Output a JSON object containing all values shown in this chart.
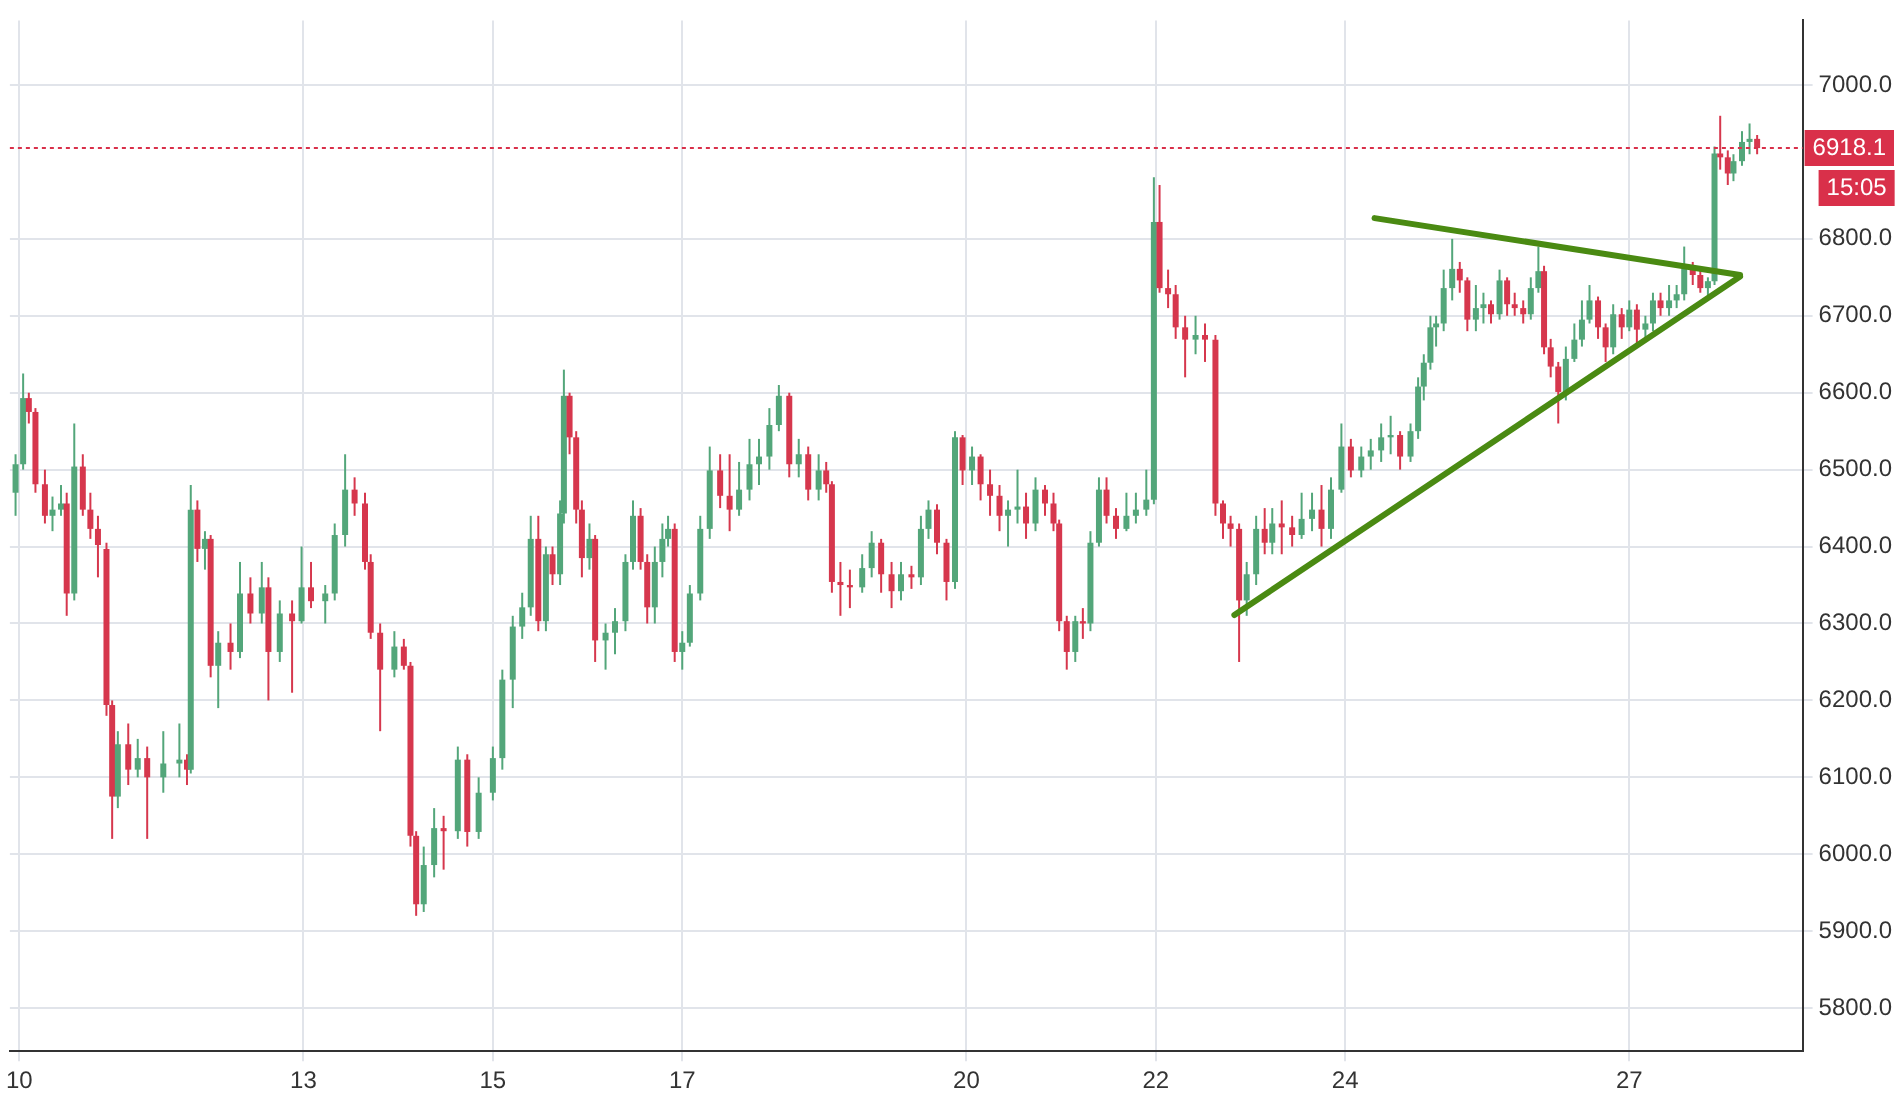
{
  "chart_data": {
    "type": "candlestick",
    "xlim": [
      9.9,
      28.83
    ],
    "xticks": [
      10,
      13,
      15,
      17,
      20,
      22,
      24,
      27
    ],
    "ylim": [
      5744,
      7084
    ],
    "yticks": [
      {
        "value": 5800,
        "label": "5800.0"
      },
      {
        "value": 5900,
        "label": "5900.0"
      },
      {
        "value": 6000,
        "label": "6000.0"
      },
      {
        "value": 6100,
        "label": "6100.0"
      },
      {
        "value": 6200,
        "label": "6200.0"
      },
      {
        "value": 6300,
        "label": "6300.0"
      },
      {
        "value": 6400,
        "label": "6400.0"
      },
      {
        "value": 6500,
        "label": "6500.0"
      },
      {
        "value": 6600,
        "label": "6600.0"
      },
      {
        "value": 6700,
        "label": "6700.0"
      },
      {
        "value": 6800,
        "label": "6800.0"
      },
      {
        "value": 7000,
        "label": "7000.0"
      }
    ],
    "grid": true,
    "ref_lines": [
      {
        "axis": "y",
        "value": 6918.1,
        "label": "6918.1",
        "color": "#d9304a",
        "line_style": "dotted"
      }
    ],
    "annotations": [
      "15:05"
    ],
    "series": [
      {
        "x": [
          9.96,
          10.04,
          10.1,
          10.17,
          10.27,
          10.35,
          10.44,
          10.5,
          10.58,
          10.67,
          10.75,
          10.83,
          10.92,
          10.98,
          11.04,
          11.15,
          11.25,
          11.35,
          11.52,
          11.69,
          11.77,
          11.81,
          11.88,
          11.96,
          12.02,
          12.1,
          12.23,
          12.33,
          12.44,
          12.56,
          12.63,
          12.75,
          12.88,
          12.98,
          13.08,
          13.23,
          13.33,
          13.44,
          13.54,
          13.65,
          13.71,
          13.81,
          13.96,
          14.06,
          14.13,
          14.19,
          14.27,
          14.38,
          14.48,
          14.63,
          14.73,
          14.85,
          15.0,
          15.1,
          15.21,
          15.31,
          15.4,
          15.48,
          15.56,
          15.63,
          15.71,
          15.75,
          15.81,
          15.88,
          15.94,
          16.02,
          16.08,
          16.19,
          16.29,
          16.4,
          16.48,
          16.56,
          16.63,
          16.71,
          16.79,
          16.85,
          16.92,
          17.0,
          17.08,
          17.19,
          17.29,
          17.4,
          17.5,
          17.6,
          17.71,
          17.81,
          17.92,
          18.02,
          18.13,
          18.23,
          18.33,
          18.44,
          18.52,
          18.58,
          18.67,
          18.77,
          18.9,
          19.0,
          19.1,
          19.21,
          19.31,
          19.42,
          19.52,
          19.6,
          19.69,
          19.79,
          19.88,
          19.96,
          20.06,
          20.15,
          20.25,
          20.35,
          20.44,
          20.54,
          20.63,
          20.73,
          20.83,
          20.92,
          20.98,
          21.06,
          21.15,
          21.23,
          21.31,
          21.4,
          21.48,
          21.58,
          21.69,
          21.79,
          21.9,
          21.98,
          22.04,
          22.13,
          22.21,
          22.31,
          22.42,
          22.52,
          22.63,
          22.71,
          22.79,
          22.88,
          22.96,
          23.06,
          23.15,
          23.23,
          23.33,
          23.44,
          23.54,
          23.65,
          23.75,
          23.85,
          23.96,
          24.06,
          24.17,
          24.27,
          24.38,
          24.48,
          24.58,
          24.69,
          24.77,
          24.83,
          24.9,
          24.96,
          25.04,
          25.13,
          25.21,
          25.29,
          25.38,
          25.46,
          25.54,
          25.63,
          25.71,
          25.79,
          25.88,
          25.96,
          26.04,
          26.1,
          26.17,
          26.25,
          26.33,
          26.42,
          26.5,
          26.58,
          26.67,
          26.75,
          26.83,
          26.92,
          27.0,
          27.08,
          27.17,
          27.25,
          27.33,
          27.42,
          27.5,
          27.58,
          27.67,
          27.75,
          27.83,
          27.9,
          27.96,
          28.04,
          28.1,
          28.19,
          28.27,
          28.35
        ],
        "ohlc": [
          [
            6470,
            6520,
            6440,
            6507
          ],
          [
            6507,
            6625,
            6500,
            6593
          ],
          [
            6593,
            6600,
            6560,
            6575
          ],
          [
            6575,
            6580,
            6470,
            6481
          ],
          [
            6481,
            6500,
            6430,
            6440
          ],
          [
            6440,
            6465,
            6420,
            6448
          ],
          [
            6448,
            6480,
            6440,
            6456
          ],
          [
            6456,
            6470,
            6310,
            6339
          ],
          [
            6339,
            6560,
            6330,
            6504
          ],
          [
            6504,
            6520,
            6440,
            6448
          ],
          [
            6448,
            6470,
            6410,
            6423
          ],
          [
            6423,
            6440,
            6360,
            6402
          ],
          [
            6397,
            6405,
            6180,
            6194
          ],
          [
            6194,
            6200,
            6020,
            6075
          ],
          [
            6075,
            6160,
            6060,
            6143
          ],
          [
            6143,
            6170,
            6090,
            6110
          ],
          [
            6110,
            6150,
            6100,
            6125
          ],
          [
            6125,
            6140,
            6020,
            6100
          ],
          [
            6100,
            6160,
            6080,
            6118
          ],
          [
            6118,
            6170,
            6100,
            6123
          ],
          [
            6123,
            6130,
            6090,
            6110
          ],
          [
            6110,
            6480,
            6105,
            6448
          ],
          [
            6448,
            6460,
            6380,
            6397
          ],
          [
            6397,
            6420,
            6370,
            6410
          ],
          [
            6410,
            6415,
            6230,
            6245
          ],
          [
            6245,
            6290,
            6190,
            6275
          ],
          [
            6275,
            6300,
            6240,
            6263
          ],
          [
            6263,
            6380,
            6255,
            6339
          ],
          [
            6339,
            6360,
            6300,
            6313
          ],
          [
            6313,
            6380,
            6300,
            6347
          ],
          [
            6347,
            6360,
            6200,
            6263
          ],
          [
            6263,
            6330,
            6250,
            6313
          ],
          [
            6313,
            6330,
            6210,
            6303
          ],
          [
            6303,
            6400,
            6300,
            6347
          ],
          [
            6347,
            6380,
            6320,
            6329
          ],
          [
            6329,
            6350,
            6300,
            6339
          ],
          [
            6339,
            6430,
            6330,
            6415
          ],
          [
            6415,
            6520,
            6400,
            6474
          ],
          [
            6474,
            6490,
            6440,
            6456
          ],
          [
            6456,
            6470,
            6370,
            6380
          ],
          [
            6380,
            6390,
            6280,
            6288
          ],
          [
            6288,
            6300,
            6160,
            6240
          ],
          [
            6240,
            6290,
            6230,
            6270
          ],
          [
            6270,
            6280,
            6240,
            6245
          ],
          [
            6245,
            6250,
            6010,
            6024
          ],
          [
            6024,
            6030,
            5920,
            5935
          ],
          [
            5935,
            6010,
            5925,
            5986
          ],
          [
            5986,
            6060,
            5970,
            6034
          ],
          [
            6034,
            6050,
            5980,
            6030
          ],
          [
            6030,
            6140,
            6020,
            6123
          ],
          [
            6123,
            6130,
            6010,
            6029
          ],
          [
            6029,
            6100,
            6020,
            6080
          ],
          [
            6080,
            6140,
            6070,
            6125
          ],
          [
            6125,
            6240,
            6110,
            6227
          ],
          [
            6227,
            6310,
            6190,
            6296
          ],
          [
            6296,
            6340,
            6280,
            6321
          ],
          [
            6321,
            6440,
            6310,
            6410
          ],
          [
            6410,
            6440,
            6290,
            6303
          ],
          [
            6303,
            6400,
            6290,
            6390
          ],
          [
            6390,
            6400,
            6350,
            6364
          ],
          [
            6364,
            6460,
            6350,
            6443
          ],
          [
            6443,
            6630,
            6430,
            6596
          ],
          [
            6596,
            6600,
            6520,
            6542
          ],
          [
            6542,
            6550,
            6430,
            6448
          ],
          [
            6448,
            6460,
            6360,
            6385
          ],
          [
            6385,
            6430,
            6370,
            6410
          ],
          [
            6410,
            6415,
            6250,
            6278
          ],
          [
            6278,
            6300,
            6240,
            6288
          ],
          [
            6288,
            6320,
            6260,
            6303
          ],
          [
            6303,
            6390,
            6290,
            6380
          ],
          [
            6380,
            6460,
            6370,
            6440
          ],
          [
            6440,
            6450,
            6370,
            6380
          ],
          [
            6380,
            6390,
            6300,
            6321
          ],
          [
            6321,
            6400,
            6300,
            6380
          ],
          [
            6380,
            6430,
            6360,
            6410
          ],
          [
            6410,
            6440,
            6400,
            6423
          ],
          [
            6423,
            6430,
            6250,
            6263
          ],
          [
            6263,
            6290,
            6240,
            6275
          ],
          [
            6275,
            6350,
            6270,
            6339
          ],
          [
            6339,
            6440,
            6330,
            6423
          ],
          [
            6423,
            6530,
            6410,
            6499
          ],
          [
            6499,
            6520,
            6450,
            6466
          ],
          [
            6466,
            6520,
            6420,
            6448
          ],
          [
            6448,
            6510,
            6440,
            6474
          ],
          [
            6474,
            6540,
            6460,
            6507
          ],
          [
            6507,
            6540,
            6480,
            6517
          ],
          [
            6517,
            6580,
            6500,
            6558
          ],
          [
            6558,
            6610,
            6550,
            6596
          ],
          [
            6596,
            6600,
            6490,
            6507
          ],
          [
            6507,
            6540,
            6490,
            6520
          ],
          [
            6520,
            6530,
            6460,
            6474
          ],
          [
            6474,
            6520,
            6460,
            6499
          ],
          [
            6499,
            6510,
            6470,
            6481
          ],
          [
            6481,
            6485,
            6340,
            6354
          ],
          [
            6354,
            6380,
            6310,
            6350
          ],
          [
            6350,
            6370,
            6320,
            6347
          ],
          [
            6347,
            6390,
            6340,
            6372
          ],
          [
            6372,
            6420,
            6360,
            6405
          ],
          [
            6405,
            6410,
            6340,
            6364
          ],
          [
            6364,
            6380,
            6320,
            6342
          ],
          [
            6342,
            6380,
            6330,
            6364
          ],
          [
            6364,
            6375,
            6345,
            6360
          ],
          [
            6360,
            6440,
            6350,
            6423
          ],
          [
            6423,
            6460,
            6410,
            6448
          ],
          [
            6448,
            6455,
            6390,
            6405
          ],
          [
            6405,
            6410,
            6330,
            6354
          ],
          [
            6354,
            6550,
            6345,
            6542
          ],
          [
            6542,
            6545,
            6480,
            6499
          ],
          [
            6499,
            6530,
            6480,
            6517
          ],
          [
            6517,
            6520,
            6460,
            6481
          ],
          [
            6481,
            6500,
            6440,
            6466
          ],
          [
            6466,
            6480,
            6420,
            6440
          ],
          [
            6440,
            6460,
            6400,
            6448
          ],
          [
            6448,
            6500,
            6430,
            6452
          ],
          [
            6452,
            6470,
            6410,
            6430
          ],
          [
            6430,
            6490,
            6420,
            6474
          ],
          [
            6474,
            6480,
            6440,
            6456
          ],
          [
            6456,
            6470,
            6420,
            6430
          ],
          [
            6430,
            6435,
            6290,
            6303
          ],
          [
            6303,
            6310,
            6240,
            6263
          ],
          [
            6263,
            6310,
            6250,
            6303
          ],
          [
            6303,
            6320,
            6280,
            6300
          ],
          [
            6300,
            6420,
            6290,
            6405
          ],
          [
            6405,
            6490,
            6400,
            6474
          ],
          [
            6474,
            6490,
            6430,
            6440
          ],
          [
            6440,
            6450,
            6410,
            6423
          ],
          [
            6423,
            6470,
            6420,
            6440
          ],
          [
            6440,
            6470,
            6430,
            6448
          ],
          [
            6448,
            6500,
            6440,
            6461
          ],
          [
            6461,
            6880,
            6455,
            6822
          ],
          [
            6822,
            6870,
            6730,
            6736
          ],
          [
            6736,
            6760,
            6710,
            6728
          ],
          [
            6728,
            6740,
            6670,
            6685
          ],
          [
            6685,
            6700,
            6620,
            6669
          ],
          [
            6669,
            6700,
            6650,
            6675
          ],
          [
            6675,
            6690,
            6640,
            6669
          ],
          [
            6669,
            6675,
            6440,
            6456
          ],
          [
            6456,
            6460,
            6410,
            6430
          ],
          [
            6430,
            6440,
            6400,
            6423
          ],
          [
            6423,
            6430,
            6250,
            6330
          ],
          [
            6330,
            6380,
            6310,
            6364
          ],
          [
            6364,
            6440,
            6350,
            6423
          ],
          [
            6423,
            6450,
            6390,
            6405
          ],
          [
            6405,
            6450,
            6390,
            6430
          ],
          [
            6430,
            6460,
            6390,
            6425
          ],
          [
            6425,
            6440,
            6400,
            6415
          ],
          [
            6415,
            6470,
            6410,
            6436
          ],
          [
            6436,
            6470,
            6420,
            6448
          ],
          [
            6448,
            6480,
            6400,
            6423
          ],
          [
            6423,
            6490,
            6410,
            6474
          ],
          [
            6474,
            6560,
            6470,
            6530
          ],
          [
            6530,
            6540,
            6490,
            6499
          ],
          [
            6499,
            6530,
            6490,
            6517
          ],
          [
            6517,
            6540,
            6500,
            6525
          ],
          [
            6525,
            6560,
            6510,
            6542
          ],
          [
            6542,
            6570,
            6520,
            6545
          ],
          [
            6545,
            6550,
            6500,
            6517
          ],
          [
            6517,
            6560,
            6510,
            6550
          ],
          [
            6550,
            6620,
            6540,
            6608
          ],
          [
            6608,
            6650,
            6590,
            6639
          ],
          [
            6639,
            6700,
            6630,
            6685
          ],
          [
            6685,
            6700,
            6660,
            6690
          ],
          [
            6690,
            6760,
            6680,
            6736
          ],
          [
            6736,
            6800,
            6720,
            6761
          ],
          [
            6761,
            6770,
            6730,
            6746
          ],
          [
            6746,
            6750,
            6680,
            6695
          ],
          [
            6695,
            6740,
            6680,
            6710
          ],
          [
            6710,
            6730,
            6690,
            6715
          ],
          [
            6715,
            6720,
            6690,
            6702
          ],
          [
            6702,
            6760,
            6695,
            6746
          ],
          [
            6746,
            6750,
            6700,
            6715
          ],
          [
            6715,
            6730,
            6700,
            6710
          ],
          [
            6710,
            6720,
            6690,
            6702
          ],
          [
            6702,
            6750,
            6695,
            6736
          ],
          [
            6736,
            6790,
            6730,
            6758
          ],
          [
            6758,
            6765,
            6650,
            6659
          ],
          [
            6659,
            6670,
            6620,
            6634
          ],
          [
            6634,
            6640,
            6560,
            6601
          ],
          [
            6601,
            6660,
            6590,
            6644
          ],
          [
            6644,
            6690,
            6640,
            6669
          ],
          [
            6669,
            6720,
            6660,
            6695
          ],
          [
            6695,
            6740,
            6690,
            6720
          ],
          [
            6720,
            6725,
            6670,
            6685
          ],
          [
            6685,
            6690,
            6640,
            6659
          ],
          [
            6659,
            6715,
            6650,
            6702
          ],
          [
            6702,
            6710,
            6670,
            6685
          ],
          [
            6685,
            6720,
            6680,
            6708
          ],
          [
            6708,
            6715,
            6660,
            6682
          ],
          [
            6682,
            6700,
            6670,
            6690
          ],
          [
            6690,
            6730,
            6680,
            6720
          ],
          [
            6720,
            6730,
            6700,
            6710
          ],
          [
            6710,
            6740,
            6700,
            6720
          ],
          [
            6720,
            6740,
            6710,
            6728
          ],
          [
            6728,
            6790,
            6720,
            6761
          ],
          [
            6761,
            6770,
            6740,
            6753
          ],
          [
            6753,
            6760,
            6730,
            6736
          ],
          [
            6736,
            6750,
            6725,
            6745
          ],
          [
            6745,
            6920,
            6740,
            6911
          ],
          [
            6911,
            6960,
            6890,
            6906
          ],
          [
            6906,
            6915,
            6870,
            6885
          ],
          [
            6885,
            6910,
            6875,
            6901
          ],
          [
            6901,
            6940,
            6895,
            6926
          ],
          [
            6926,
            6950,
            6910,
            6930
          ],
          [
            6930,
            6935,
            6910,
            6918
          ]
        ]
      },
      {
        "type": "line",
        "color": "#4a8a12",
        "x": [
          24.31,
          28.17
        ],
        "values": [
          6827,
          6753
        ]
      },
      {
        "type": "line",
        "color": "#4a8a12",
        "x": [
          22.83,
          28.17
        ],
        "values": [
          6311,
          6751
        ]
      }
    ]
  }
}
